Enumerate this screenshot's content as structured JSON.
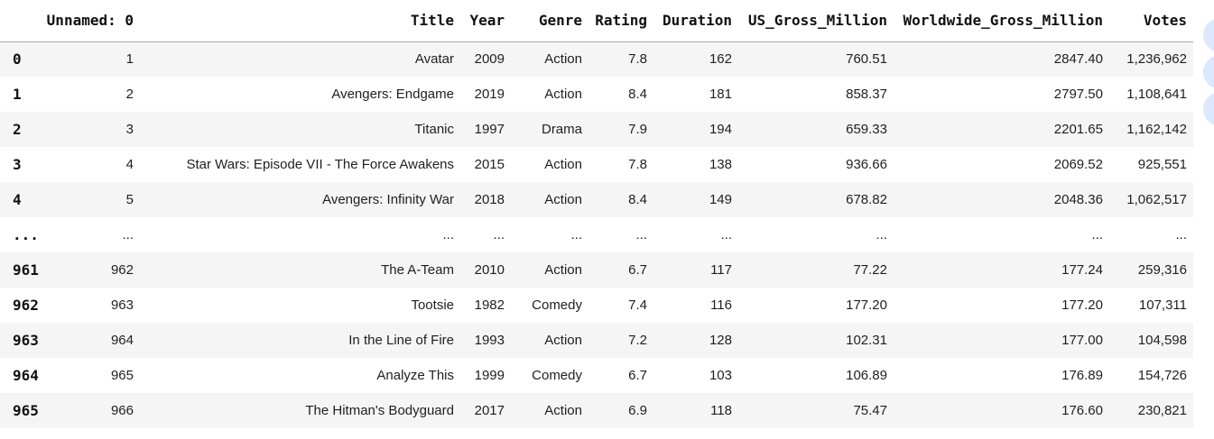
{
  "table": {
    "index_header": "",
    "columns": [
      "Unnamed: 0",
      "Title",
      "Year",
      "Genre",
      "Rating",
      "Duration",
      "US_Gross_Million",
      "Worldwide_Gross_Million",
      "Votes"
    ],
    "rows": [
      {
        "index": "0",
        "cells": [
          "1",
          "Avatar",
          "2009",
          "Action",
          "7.8",
          "162",
          "760.51",
          "2847.40",
          "1,236,962"
        ]
      },
      {
        "index": "1",
        "cells": [
          "2",
          "Avengers: Endgame",
          "2019",
          "Action",
          "8.4",
          "181",
          "858.37",
          "2797.50",
          "1,108,641"
        ]
      },
      {
        "index": "2",
        "cells": [
          "3",
          "Titanic",
          "1997",
          "Drama",
          "7.9",
          "194",
          "659.33",
          "2201.65",
          "1,162,142"
        ]
      },
      {
        "index": "3",
        "cells": [
          "4",
          "Star Wars: Episode VII - The Force Awakens",
          "2015",
          "Action",
          "7.8",
          "138",
          "936.66",
          "2069.52",
          "925,551"
        ]
      },
      {
        "index": "4",
        "cells": [
          "5",
          "Avengers: Infinity War",
          "2018",
          "Action",
          "8.4",
          "149",
          "678.82",
          "2048.36",
          "1,062,517"
        ]
      },
      {
        "index": "...",
        "cells": [
          "...",
          "...",
          "...",
          "...",
          "...",
          "...",
          "...",
          "...",
          "..."
        ]
      },
      {
        "index": "961",
        "cells": [
          "962",
          "The A-Team",
          "2010",
          "Action",
          "6.7",
          "117",
          "77.22",
          "177.24",
          "259,316"
        ]
      },
      {
        "index": "962",
        "cells": [
          "963",
          "Tootsie",
          "1982",
          "Comedy",
          "7.4",
          "116",
          "177.20",
          "177.20",
          "107,311"
        ]
      },
      {
        "index": "963",
        "cells": [
          "964",
          "In the Line of Fire",
          "1993",
          "Action",
          "7.2",
          "128",
          "102.31",
          "177.00",
          "104,598"
        ]
      },
      {
        "index": "964",
        "cells": [
          "965",
          "Analyze This",
          "1999",
          "Comedy",
          "6.7",
          "103",
          "106.89",
          "176.89",
          "154,726"
        ]
      },
      {
        "index": "965",
        "cells": [
          "966",
          "The Hitman's Bodyguard",
          "2017",
          "Action",
          "6.9",
          "118",
          "75.47",
          "176.60",
          "230,821"
        ]
      }
    ]
  },
  "action_buttons": [
    {
      "name": "output-action-button-1"
    },
    {
      "name": "output-action-button-2"
    },
    {
      "name": "output-action-button-3"
    }
  ],
  "colors": {
    "background": "#ffffff",
    "row_stripe": "#f5f5f5",
    "header_border": "#ababab",
    "cell_text": "#1f1f1f",
    "header_text": "#111111",
    "action_button_fill": "#dce8fd"
  }
}
